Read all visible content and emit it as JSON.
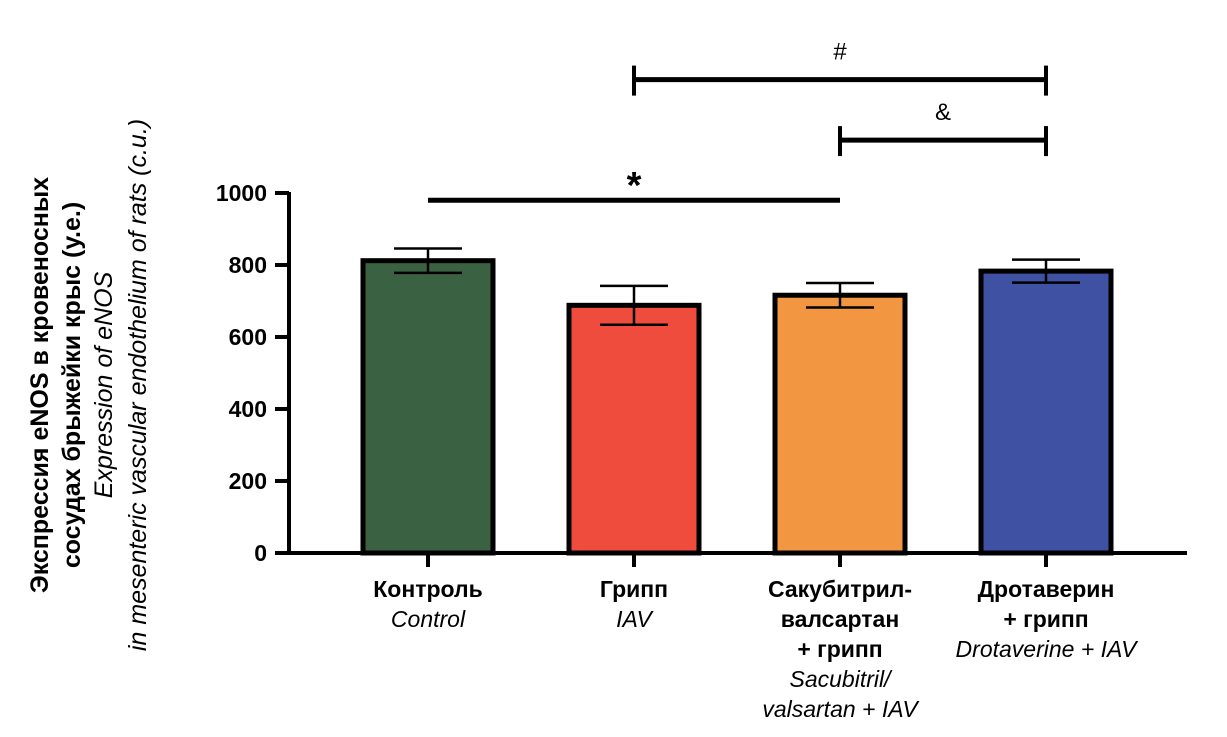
{
  "chart_data": {
    "type": "bar",
    "ylabel": {
      "ru_lines": [
        "Экспрессия eNOS в кровеносных",
        "сосудах брыжейки крыс (у.е.)"
      ],
      "en_lines": [
        "Expression of eNOS",
        "in mesenteric vascular endothelium of rats (c.u.)"
      ]
    },
    "ylim": [
      0,
      1000
    ],
    "yticks": [
      0,
      200,
      400,
      600,
      800,
      1000
    ],
    "categories": [
      {
        "ru": [
          "Контроль"
        ],
        "en": [
          "Control"
        ],
        "value": 812,
        "error": 34,
        "color": "#3a6141"
      },
      {
        "ru": [
          "Грипп"
        ],
        "en": [
          "IAV"
        ],
        "value": 688,
        "error": 54,
        "color": "#f04c3e"
      },
      {
        "ru": [
          "Сакубитрил-",
          "валсартан",
          "+ грипп"
        ],
        "en": [
          "Sacubitril/",
          "valsartan + IAV"
        ],
        "value": 716,
        "error": 34,
        "color": "#f39641"
      },
      {
        "ru": [
          "Дротаверин",
          "+ грипп"
        ],
        "en": [
          "Drotaverine + IAV"
        ],
        "value": 783,
        "error": 32,
        "color": "#3f51a2"
      }
    ],
    "significance": [
      {
        "from": 0,
        "to": 2,
        "label": "*",
        "value": 980,
        "caps": false
      },
      {
        "from": 1,
        "to": 3,
        "label": "#",
        "value": 1315,
        "caps": true
      },
      {
        "from": 2,
        "to": 3,
        "label": "&",
        "value": 1147,
        "caps": true
      }
    ]
  }
}
